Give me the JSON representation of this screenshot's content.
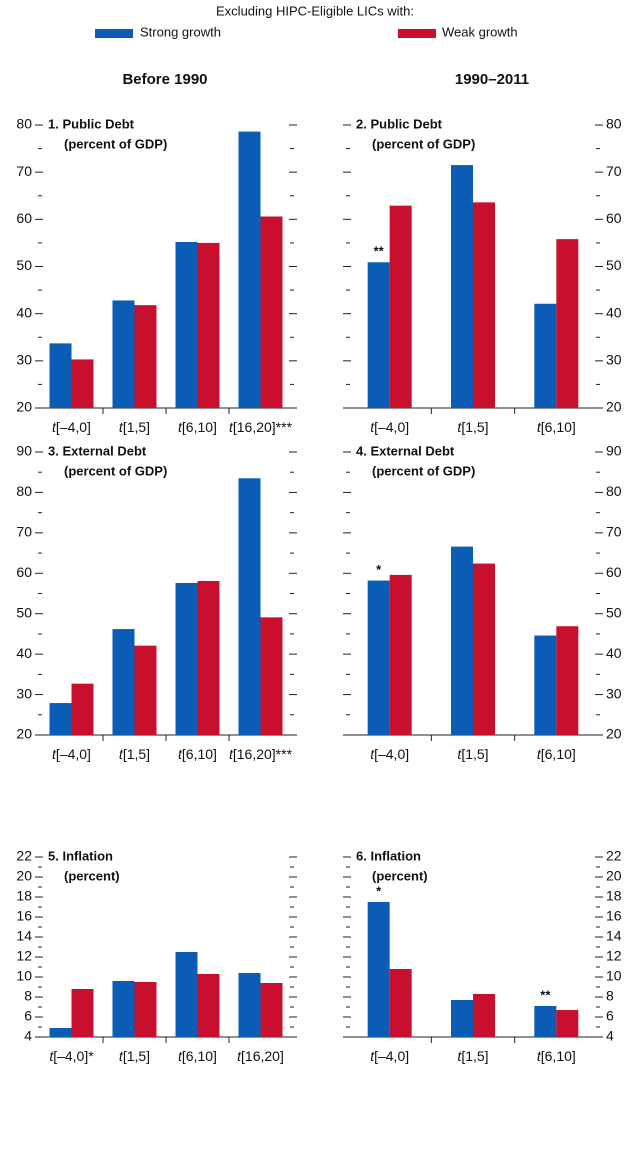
{
  "legend_title": "Excluding HIPC-Eligible LICs with:",
  "column_titles": [
    "Before 1990",
    "1990–2011"
  ],
  "chart_data": [
    {
      "type": "bar",
      "title": "1. Public Debt",
      "subtitle": "(percent of GDP)",
      "categories": [
        "t[–4,0]",
        "t[1,5]",
        "t[6,10]",
        "t[16,20]***"
      ],
      "series": [
        {
          "name": "Strong growth",
          "color": "#0a5cb4",
          "values": [
            33.7,
            42.8,
            55.2,
            78.6
          ]
        },
        {
          "name": "Weak growth",
          "color": "#c8102e",
          "values": [
            30.3,
            41.8,
            55.0,
            60.6
          ]
        }
      ],
      "ylim": [
        20,
        80
      ],
      "yticks": [
        20,
        30,
        40,
        50,
        60,
        70,
        80
      ],
      "yminorticks": [
        25,
        35,
        45,
        55,
        65,
        75
      ]
    },
    {
      "type": "bar",
      "title": "2. Public Debt",
      "subtitle": "(percent of GDP)",
      "categories": [
        "t[–4,0]",
        "t[1,5]",
        "t[6,10]"
      ],
      "series": [
        {
          "color": "#0a5cb4",
          "values": [
            50.9,
            71.5,
            42.1
          ],
          "significance": [
            "**",
            null,
            null
          ]
        },
        {
          "color": "#c8102e",
          "values": [
            62.9,
            63.6,
            55.8
          ]
        }
      ],
      "ylim": [
        20,
        80
      ],
      "yticks": [
        20,
        30,
        40,
        50,
        60,
        70,
        80
      ],
      "yminorticks": [
        25,
        35,
        45,
        55,
        65,
        75
      ]
    },
    {
      "type": "bar",
      "title": "3. External Debt",
      "subtitle": "(percent of GDP)",
      "categories": [
        "t[–4,0]",
        "t[1,5]",
        "t[6,10]",
        "t[16,20]***"
      ],
      "series": [
        {
          "color": "#0a5cb4",
          "values": [
            27.9,
            46.2,
            57.6,
            83.5
          ]
        },
        {
          "color": "#c8102e",
          "values": [
            32.7,
            42.1,
            58.1,
            49.1
          ]
        }
      ],
      "ylim": [
        20,
        90
      ],
      "yticks": [
        20,
        30,
        40,
        50,
        60,
        70,
        80,
        90
      ],
      "yminorticks": [
        25,
        35,
        45,
        55,
        65,
        75,
        85
      ]
    },
    {
      "type": "bar",
      "title": "4. External Debt",
      "subtitle": "(percent of GDP)",
      "categories": [
        "t[–4,0]",
        "t[1,5]",
        "t[6,10]"
      ],
      "series": [
        {
          "color": "#0a5cb4",
          "values": [
            58.2,
            66.6,
            44.6
          ],
          "significance": [
            "*",
            null,
            null
          ]
        },
        {
          "color": "#c8102e",
          "values": [
            59.6,
            62.4,
            46.9
          ]
        }
      ],
      "ylim": [
        20,
        90
      ],
      "yticks": [
        20,
        30,
        40,
        50,
        60,
        70,
        80,
        90
      ],
      "yminorticks": [
        25,
        35,
        45,
        55,
        65,
        75,
        85
      ]
    },
    {
      "type": "bar",
      "title": "5. Inflation",
      "subtitle": "(percent)",
      "categories": [
        "t[–4,0]*",
        "t[1,5]",
        "t[6,10]",
        "t[16,20]"
      ],
      "series": [
        {
          "color": "#0a5cb4",
          "values": [
            4.9,
            9.6,
            12.5,
            10.4
          ]
        },
        {
          "color": "#c8102e",
          "values": [
            8.8,
            9.5,
            10.3,
            9.4
          ]
        }
      ],
      "ylim": [
        4,
        22
      ],
      "yticks": [
        4,
        6,
        8,
        10,
        12,
        14,
        16,
        18,
        20,
        22
      ],
      "yminorticks": [
        5,
        7,
        9,
        11,
        13,
        15,
        17,
        19,
        21
      ]
    },
    {
      "type": "bar",
      "title": "6. Inflation",
      "subtitle": "(percent)",
      "categories": [
        "t[–4,0]",
        "t[1,5]",
        "t[6,10]"
      ],
      "series": [
        {
          "color": "#0a5cb4",
          "values": [
            17.5,
            7.7,
            7.1
          ],
          "significance": [
            "*",
            null,
            "**"
          ]
        },
        {
          "color": "#c8102e",
          "values": [
            10.8,
            8.3,
            6.7
          ]
        }
      ],
      "ylim": [
        4,
        22
      ],
      "yticks": [
        4,
        6,
        8,
        10,
        12,
        14,
        16,
        18,
        20,
        22
      ],
      "yminorticks": [
        5,
        7,
        9,
        11,
        13,
        15,
        17,
        19,
        21
      ]
    }
  ]
}
